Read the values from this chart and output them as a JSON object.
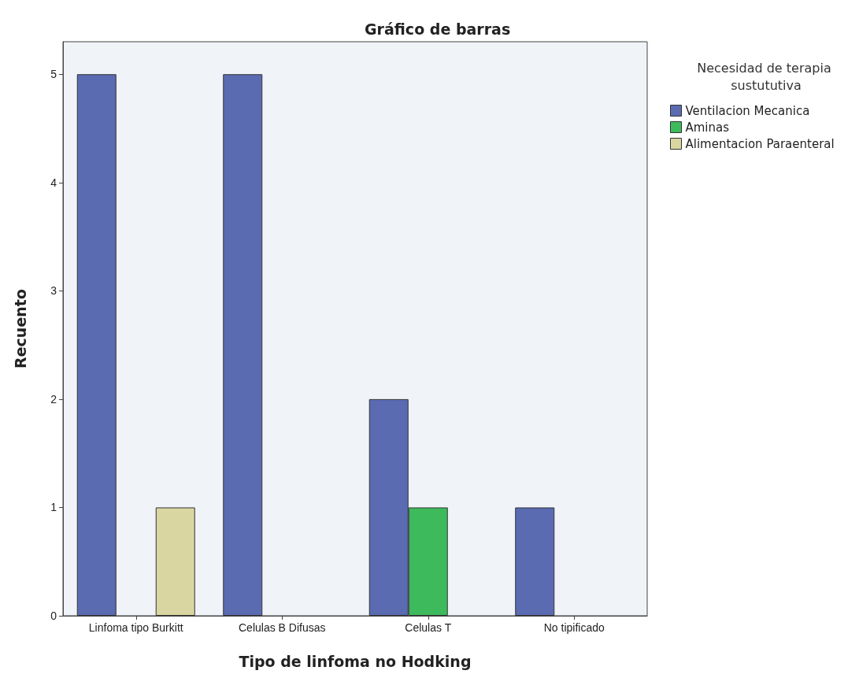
{
  "chart_data": {
    "type": "bar",
    "title": "Gráfico de barras",
    "xlabel": "Tipo de linfoma no Hodking",
    "ylabel": "Recuento",
    "legend_title": "Necesidad de terapia sustututiva",
    "categories": [
      "Linfoma tipo Burkitt",
      "Celulas B Difusas",
      "Celulas T",
      "No tipificado"
    ],
    "series": [
      {
        "name": "Ventilacion Mecanica",
        "color": "#5a6bb2",
        "values": [
          5,
          5,
          2,
          1
        ]
      },
      {
        "name": "Aminas",
        "color": "#3dba5c",
        "values": [
          null,
          null,
          1,
          null
        ]
      },
      {
        "name": "Alimentacion Paraenteral",
        "color": "#d9d6a2",
        "values": [
          1,
          null,
          null,
          null
        ]
      }
    ],
    "ylim": [
      0,
      5.3
    ],
    "yticks": [
      0,
      1,
      2,
      3,
      4,
      5
    ],
    "grid": false,
    "legend": "top right"
  }
}
